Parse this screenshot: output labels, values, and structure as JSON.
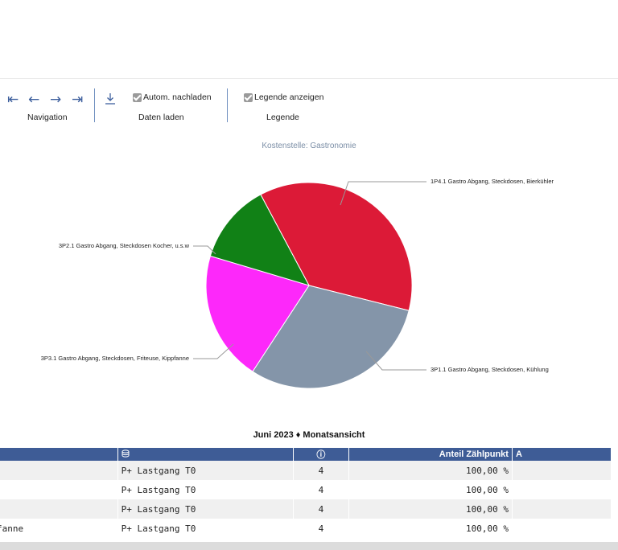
{
  "toolbar": {
    "navigation": {
      "label": "Navigation",
      "arrows": [
        "⇤",
        "←",
        "→",
        "⇥"
      ],
      "icons": [
        "first-page-icon",
        "previous-icon",
        "next-icon",
        "last-page-icon"
      ]
    },
    "data_load": {
      "label": "Daten laden",
      "checkbox_label": "Autom. nachladen",
      "checked": true,
      "icon": "download-icon"
    },
    "legend": {
      "label": "Legende",
      "checkbox_label": "Legende anzeigen",
      "checked": true
    }
  },
  "chart_data": {
    "type": "pie",
    "title": "Kostenstelle: Gastronomie",
    "slices": [
      {
        "label": "1P4.1 Gastro Abgang, Steckdosen, Bierkühler",
        "value": 36.7,
        "color": "#dc1a37"
      },
      {
        "label": "3P1.1 Gastro Abgang, Steckdosen, Kühlung",
        "value": 30.3,
        "color": "#8495a9"
      },
      {
        "label": "3P3.1 Gastro Abgang, Steckdosen, Friteuse, Kippfanne",
        "value": 20.4,
        "color": "#fd28fa"
      },
      {
        "label": "3P2.1 Gastro Abgang, Steckdosen Kocher, u.s.w",
        "value": 12.6,
        "color": "#118116"
      }
    ]
  },
  "period_title": "Juni 2023 ♦ Monatsansicht",
  "table": {
    "headers": [
      "",
      "",
      "ⓘ",
      "Anteil Zählpunkt",
      "A"
    ],
    "header_icons": [
      "",
      "database-icon",
      "info-icon",
      "",
      ""
    ],
    "rows": [
      [
        "",
        "P+ Lastgang T0",
        "4",
        "100,00 %",
        ""
      ],
      [
        "",
        "P+ Lastgang T0",
        "4",
        "100,00 %",
        ""
      ],
      [
        "",
        "P+ Lastgang T0",
        "4",
        "100,00 %",
        ""
      ],
      [
        "fanne",
        "P+ Lastgang T0",
        "4",
        "100,00 %",
        ""
      ]
    ]
  },
  "colors": {
    "accent": "#3e5c96",
    "nav_icon": "#3d5f9d",
    "chart_title": "#7b8ea6"
  }
}
